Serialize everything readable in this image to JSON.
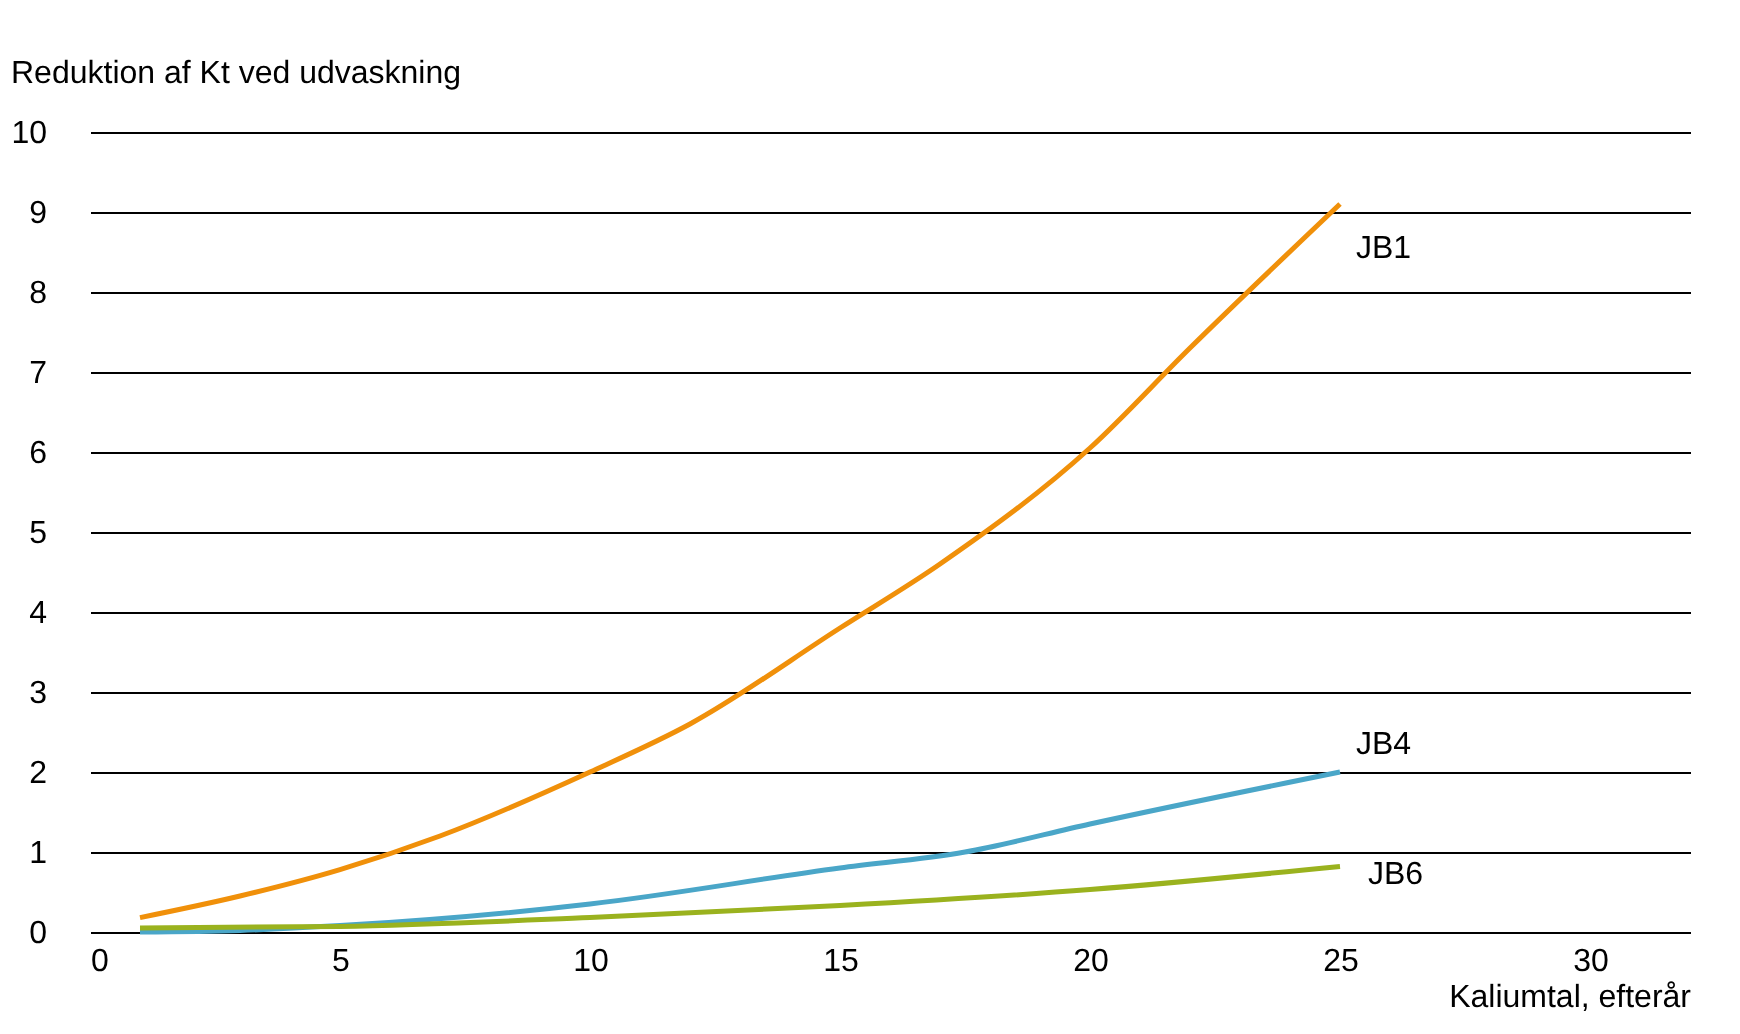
{
  "chart_data": {
    "type": "line",
    "xlabel": "Kaliumtal, efterår",
    "ylabel": "Reduktion af Kt ved udvaskning",
    "xlim": [
      0,
      32
    ],
    "xticks": [
      0,
      5,
      10,
      15,
      20,
      25,
      30
    ],
    "ylim": [
      0,
      10
    ],
    "yticks": [
      0,
      1,
      2,
      3,
      4,
      5,
      6,
      7,
      8,
      9,
      10
    ],
    "grid": "y",
    "legend": false,
    "series": [
      {
        "name": "JB1",
        "color": "#f0900a",
        "x": [
          1,
          3,
          5,
          7,
          10,
          12,
          15,
          17,
          20,
          22,
          25
        ],
        "values": [
          0.18,
          0.45,
          0.78,
          1.2,
          2.0,
          2.6,
          3.8,
          4.6,
          6.05,
          7.3,
          9.1
        ]
      },
      {
        "name": "JB4",
        "color": "#4aa6c8",
        "x": [
          1,
          3,
          5,
          10,
          15,
          17.5,
          20,
          25
        ],
        "values": [
          0.0,
          0.02,
          0.08,
          0.35,
          0.8,
          1.0,
          1.35,
          2.0
        ]
      },
      {
        "name": "JB6",
        "color": "#9ab21e",
        "x": [
          1,
          5,
          10,
          15,
          20,
          25
        ],
        "values": [
          0.05,
          0.07,
          0.18,
          0.33,
          0.53,
          0.82
        ]
      }
    ]
  }
}
